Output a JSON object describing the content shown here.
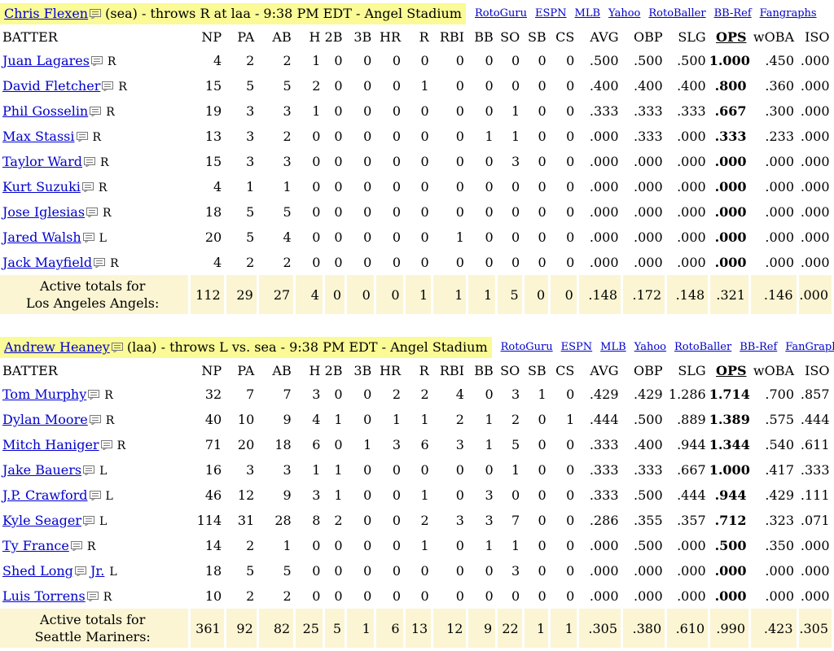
{
  "columns": [
    "BATTER",
    "NP",
    "PA",
    "AB",
    "H",
    "2B",
    "3B",
    "HR",
    "R",
    "RBI",
    "BB",
    "SO",
    "SB",
    "CS",
    "AVG",
    "OBP",
    "SLG",
    "OPS",
    "wOBA",
    "ISO"
  ],
  "sections": [
    {
      "pitcher_name": "Chris Flexen",
      "pitcher_info": " (sea) - throws R at laa - 9:38 PM EDT - Angel Stadium",
      "links": [
        "RotoGuru",
        "ESPN",
        "MLB",
        "Yahoo",
        "RotoBaller",
        "BB-Ref",
        "Fangraphs"
      ],
      "batters": [
        {
          "name": "Juan Lagares",
          "suffix": "",
          "hand": "R",
          "stats": [
            "4",
            "2",
            "2",
            "1",
            "0",
            "0",
            "0",
            "0",
            "0",
            "0",
            "0",
            "0",
            "0",
            ".500",
            ".500",
            ".500",
            "1.000",
            ".450",
            ".000"
          ]
        },
        {
          "name": "David Fletcher",
          "suffix": "",
          "hand": "R",
          "stats": [
            "15",
            "5",
            "5",
            "2",
            "0",
            "0",
            "0",
            "1",
            "0",
            "0",
            "0",
            "0",
            "0",
            ".400",
            ".400",
            ".400",
            ".800",
            ".360",
            ".000"
          ]
        },
        {
          "name": "Phil Gosselin",
          "suffix": "",
          "hand": "R",
          "stats": [
            "19",
            "3",
            "3",
            "1",
            "0",
            "0",
            "0",
            "0",
            "0",
            "0",
            "1",
            "0",
            "0",
            ".333",
            ".333",
            ".333",
            ".667",
            ".300",
            ".000"
          ]
        },
        {
          "name": "Max Stassi",
          "suffix": "",
          "hand": "R",
          "stats": [
            "13",
            "3",
            "2",
            "0",
            "0",
            "0",
            "0",
            "0",
            "0",
            "1",
            "1",
            "0",
            "0",
            ".000",
            ".333",
            ".000",
            ".333",
            ".233",
            ".000"
          ]
        },
        {
          "name": "Taylor Ward",
          "suffix": "",
          "hand": "R",
          "stats": [
            "15",
            "3",
            "3",
            "0",
            "0",
            "0",
            "0",
            "0",
            "0",
            "0",
            "3",
            "0",
            "0",
            ".000",
            ".000",
            ".000",
            ".000",
            ".000",
            ".000"
          ]
        },
        {
          "name": "Kurt Suzuki",
          "suffix": "",
          "hand": "R",
          "stats": [
            "4",
            "1",
            "1",
            "0",
            "0",
            "0",
            "0",
            "0",
            "0",
            "0",
            "0",
            "0",
            "0",
            ".000",
            ".000",
            ".000",
            ".000",
            ".000",
            ".000"
          ]
        },
        {
          "name": "Jose Iglesias",
          "suffix": "",
          "hand": "R",
          "stats": [
            "18",
            "5",
            "5",
            "0",
            "0",
            "0",
            "0",
            "0",
            "0",
            "0",
            "0",
            "0",
            "0",
            ".000",
            ".000",
            ".000",
            ".000",
            ".000",
            ".000"
          ]
        },
        {
          "name": "Jared Walsh",
          "suffix": "",
          "hand": "L",
          "stats": [
            "20",
            "5",
            "4",
            "0",
            "0",
            "0",
            "0",
            "0",
            "1",
            "0",
            "0",
            "0",
            "0",
            ".000",
            ".000",
            ".000",
            ".000",
            ".000",
            ".000"
          ]
        },
        {
          "name": "Jack Mayfield",
          "suffix": "",
          "hand": "R",
          "stats": [
            "4",
            "2",
            "2",
            "0",
            "0",
            "0",
            "0",
            "0",
            "0",
            "0",
            "0",
            "0",
            "0",
            ".000",
            ".000",
            ".000",
            ".000",
            ".000",
            ".000"
          ]
        }
      ],
      "totals_label_1": "Active totals for",
      "totals_label_2": "Los Angeles Angels:",
      "totals": [
        "112",
        "29",
        "27",
        "4",
        "0",
        "0",
        "0",
        "1",
        "1",
        "1",
        "5",
        "0",
        "0",
        ".148",
        ".172",
        ".148",
        ".321",
        ".146",
        ".000"
      ]
    },
    {
      "pitcher_name": "Andrew Heaney",
      "pitcher_info": " (laa) - throws L vs. sea - 9:38 PM EDT - Angel Stadium",
      "links": [
        "RotoGuru",
        "ESPN",
        "MLB",
        "Yahoo",
        "RotoBaller",
        "BB-Ref",
        "FanGraphs"
      ],
      "batters": [
        {
          "name": "Tom Murphy",
          "suffix": "",
          "hand": "R",
          "stats": [
            "32",
            "7",
            "7",
            "3",
            "0",
            "0",
            "2",
            "2",
            "4",
            "0",
            "3",
            "1",
            "0",
            ".429",
            ".429",
            "1.286",
            "1.714",
            ".700",
            ".857"
          ]
        },
        {
          "name": "Dylan Moore",
          "suffix": "",
          "hand": "R",
          "stats": [
            "40",
            "10",
            "9",
            "4",
            "1",
            "0",
            "1",
            "1",
            "2",
            "1",
            "2",
            "0",
            "1",
            ".444",
            ".500",
            ".889",
            "1.389",
            ".575",
            ".444"
          ]
        },
        {
          "name": "Mitch Haniger",
          "suffix": "",
          "hand": "R",
          "stats": [
            "71",
            "20",
            "18",
            "6",
            "0",
            "1",
            "3",
            "6",
            "3",
            "1",
            "5",
            "0",
            "0",
            ".333",
            ".400",
            ".944",
            "1.344",
            ".540",
            ".611"
          ]
        },
        {
          "name": "Jake Bauers",
          "suffix": "",
          "hand": "L",
          "stats": [
            "16",
            "3",
            "3",
            "1",
            "1",
            "0",
            "0",
            "0",
            "0",
            "0",
            "1",
            "0",
            "0",
            ".333",
            ".333",
            ".667",
            "1.000",
            ".417",
            ".333"
          ]
        },
        {
          "name": "J.P. Crawford",
          "suffix": "",
          "hand": "L",
          "stats": [
            "46",
            "12",
            "9",
            "3",
            "1",
            "0",
            "0",
            "1",
            "0",
            "3",
            "0",
            "0",
            "0",
            ".333",
            ".500",
            ".444",
            ".944",
            ".429",
            ".111"
          ]
        },
        {
          "name": "Kyle Seager",
          "suffix": "",
          "hand": "L",
          "stats": [
            "114",
            "31",
            "28",
            "8",
            "2",
            "0",
            "0",
            "2",
            "3",
            "3",
            "7",
            "0",
            "0",
            ".286",
            ".355",
            ".357",
            ".712",
            ".323",
            ".071"
          ]
        },
        {
          "name": "Ty France",
          "suffix": "",
          "hand": "R",
          "stats": [
            "14",
            "2",
            "1",
            "0",
            "0",
            "0",
            "0",
            "1",
            "0",
            "1",
            "1",
            "0",
            "0",
            ".000",
            ".500",
            ".000",
            ".500",
            ".350",
            ".000"
          ]
        },
        {
          "name": "Shed Long",
          "suffix": "Jr.",
          "hand": "L",
          "stats": [
            "18",
            "5",
            "5",
            "0",
            "0",
            "0",
            "0",
            "0",
            "0",
            "0",
            "3",
            "0",
            "0",
            ".000",
            ".000",
            ".000",
            ".000",
            ".000",
            ".000"
          ]
        },
        {
          "name": "Luis Torrens",
          "suffix": "",
          "hand": "R",
          "stats": [
            "10",
            "2",
            "2",
            "0",
            "0",
            "0",
            "0",
            "0",
            "0",
            "0",
            "0",
            "0",
            "0",
            ".000",
            ".000",
            ".000",
            ".000",
            ".000",
            ".000"
          ]
        }
      ],
      "totals_label_1": "Active totals for",
      "totals_label_2": "Seattle Mariners:",
      "totals": [
        "361",
        "92",
        "82",
        "25",
        "5",
        "1",
        "6",
        "13",
        "12",
        "9",
        "22",
        "1",
        "1",
        ".305",
        ".380",
        ".610",
        ".990",
        ".423",
        ".305"
      ]
    }
  ],
  "icons": {
    "note": "note-icon"
  },
  "colors": {
    "link": "#0000cc",
    "header_highlight": "#fafa96",
    "totals_bg": "#fbf5d3"
  }
}
